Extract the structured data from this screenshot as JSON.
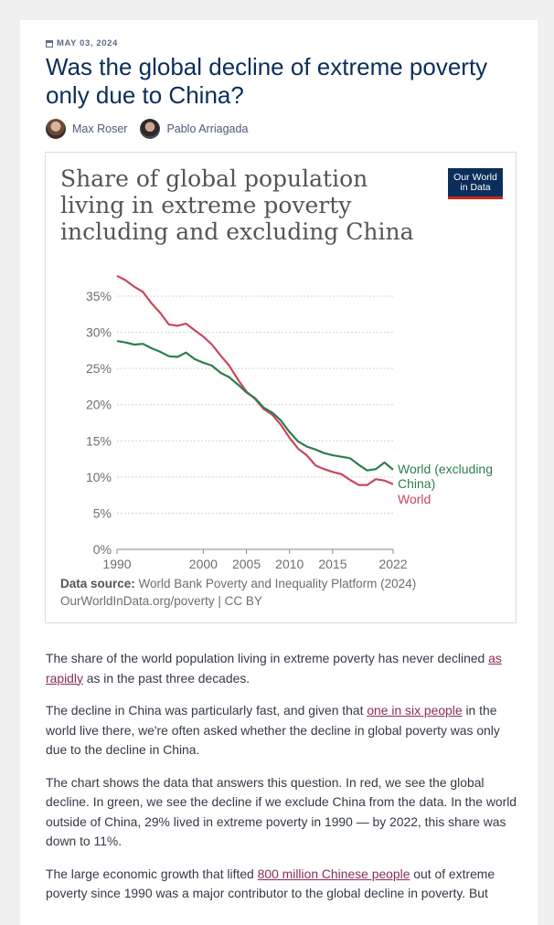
{
  "meta": {
    "date": "MAY 03, 2024"
  },
  "article": {
    "title": "Was the global decline of extreme poverty only due to China?",
    "authors": [
      "Max Roser",
      "Pablo Arriagada"
    ],
    "p1_before": "The share of the world population living in extreme poverty has never declined ",
    "p1_link": "as rapidly",
    "p1_after": " as in the past three decades.",
    "p2_before": "The decline in China was particularly fast, and given that ",
    "p2_link": "one in six people",
    "p2_after": " in the world live there, we're often asked whether the decline in global poverty was only due to the decline in China.",
    "p3": "The chart shows the data that answers this question. In red, we see the global decline. In green, we see the decline if we exclude China from the data. In the world outside of China, 29% lived in extreme poverty in 1990 — by 2022, this share was down to 11%.",
    "p4_before": "The large economic growth that lifted ",
    "p4_link": "800 million Chinese people",
    "p4_after": " out of extreme poverty since 1990 was a major contributor to the global decline in poverty. But"
  },
  "logo": {
    "line1": "Our World",
    "line2": "in Data"
  },
  "chart_data": {
    "type": "line",
    "title": "Share of global population living in extreme poverty including and excluding China",
    "xlabel": "",
    "ylabel": "",
    "xlim": [
      1990,
      2022
    ],
    "ylim": [
      0,
      35
    ],
    "x_ticks": [
      1990,
      2000,
      2005,
      2010,
      2015,
      2022
    ],
    "y_ticks": [
      {
        "value": 0,
        "label": "0%"
      },
      {
        "value": 5,
        "label": "5%"
      },
      {
        "value": 10,
        "label": "10%"
      },
      {
        "value": 15,
        "label": "15%"
      },
      {
        "value": 20,
        "label": "20%"
      },
      {
        "value": 25,
        "label": "25%"
      },
      {
        "value": 30,
        "label": "30%"
      },
      {
        "value": 35,
        "label": "35%"
      }
    ],
    "series": [
      {
        "name": "World",
        "color": "#c8475b",
        "x": [
          1990,
          1991,
          1992,
          1993,
          1994,
          1995,
          1996,
          1997,
          1998,
          1999,
          2000,
          2001,
          2002,
          2003,
          2004,
          2005,
          2006,
          2007,
          2008,
          2009,
          2010,
          2011,
          2012,
          2013,
          2014,
          2015,
          2016,
          2017,
          2018,
          2019,
          2020,
          2021,
          2022
        ],
        "values": [
          37.8,
          37.2,
          36.3,
          35.6,
          34.0,
          32.7,
          31.1,
          30.9,
          31.2,
          30.3,
          29.4,
          28.3,
          26.8,
          25.4,
          23.5,
          21.8,
          20.8,
          19.4,
          18.6,
          17.2,
          15.4,
          13.9,
          13.0,
          11.6,
          11.1,
          10.7,
          10.4,
          9.6,
          8.9,
          8.9,
          9.7,
          9.5,
          9.0
        ]
      },
      {
        "name": "World (excluding China)",
        "color": "#2e7d4f",
        "x": [
          1990,
          1991,
          1992,
          1993,
          1994,
          1995,
          1996,
          1997,
          1998,
          1999,
          2000,
          2001,
          2002,
          2003,
          2004,
          2005,
          2006,
          2007,
          2008,
          2009,
          2010,
          2011,
          2012,
          2013,
          2014,
          2015,
          2016,
          2017,
          2018,
          2019,
          2020,
          2021,
          2022
        ],
        "values": [
          28.8,
          28.6,
          28.3,
          28.4,
          27.8,
          27.3,
          26.7,
          26.6,
          27.2,
          26.3,
          25.8,
          25.4,
          24.4,
          23.8,
          22.8,
          21.7,
          20.9,
          19.6,
          18.9,
          17.8,
          16.2,
          14.9,
          14.2,
          13.8,
          13.3,
          13.0,
          12.8,
          12.6,
          11.7,
          10.9,
          11.1,
          12.0,
          11.0
        ]
      }
    ],
    "series_labels": [
      "World (excluding",
      "China)",
      "World"
    ],
    "source_label": "Data source:",
    "source_text": "World Bank Poverty and Inequality Platform (2024)",
    "source_line2": "OurWorldInData.org/poverty | CC BY"
  }
}
